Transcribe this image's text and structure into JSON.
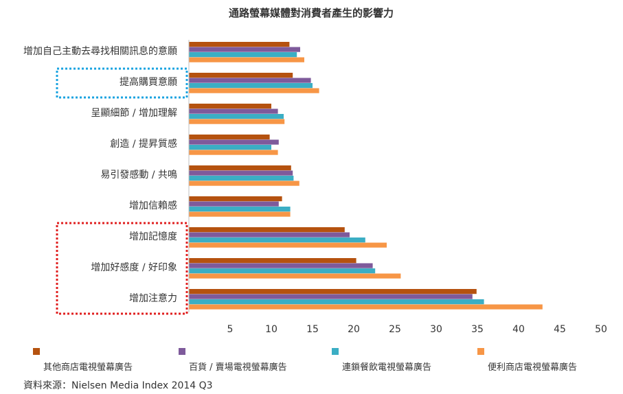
{
  "chart_data": {
    "type": "bar",
    "orientation": "horizontal",
    "title": "通路螢幕媒體對消費者產生的影響力",
    "xlabel": "",
    "ylabel": "",
    "xlim": [
      0,
      50
    ],
    "xticks": [
      5,
      10,
      15,
      20,
      25,
      30,
      35,
      40,
      45,
      50
    ],
    "categories": [
      "增加自己主動去尋找相關訊息的意願",
      "提高購買意願",
      "呈顯細節 / 增加理解",
      "創造 / 提昇質感",
      "易引發感動 / 共鳴",
      "增加信賴感",
      "增加記憶度",
      "增加好感度 / 好印象",
      "增加注意力"
    ],
    "series": [
      {
        "name": "其他商店電視螢幕廣告",
        "color": "#b5520f",
        "values": [
          12.2,
          12.6,
          10.0,
          9.8,
          12.4,
          11.3,
          18.9,
          20.3,
          34.9
        ]
      },
      {
        "name": "百貨 / 賣場電視螢幕廣告",
        "color": "#7e5a9b",
        "values": [
          13.5,
          14.8,
          10.8,
          10.9,
          12.6,
          10.9,
          19.5,
          22.3,
          34.4
        ]
      },
      {
        "name": "連鎖餐飲電視螢幕廣告",
        "color": "#3baec4",
        "values": [
          13.1,
          15.0,
          11.5,
          10.0,
          12.7,
          12.3,
          21.4,
          22.6,
          35.8
        ]
      },
      {
        "name": "便利商店電視螢幕廣告",
        "color": "#f79646",
        "values": [
          14.0,
          15.8,
          11.6,
          10.8,
          13.4,
          12.3,
          24.0,
          25.7,
          42.9
        ]
      }
    ],
    "grid": false,
    "legend_position": "bottom",
    "highlights": [
      {
        "categories": [
          "提高購買意願"
        ],
        "color": "#1aa3e0",
        "style": "dotted"
      },
      {
        "categories": [
          "增加記憶度",
          "增加好感度 / 好印象",
          "增加注意力"
        ],
        "color": "#e02020",
        "style": "dotted"
      }
    ]
  },
  "source": "資料來源：Nielsen Media Index 2014 Q3"
}
